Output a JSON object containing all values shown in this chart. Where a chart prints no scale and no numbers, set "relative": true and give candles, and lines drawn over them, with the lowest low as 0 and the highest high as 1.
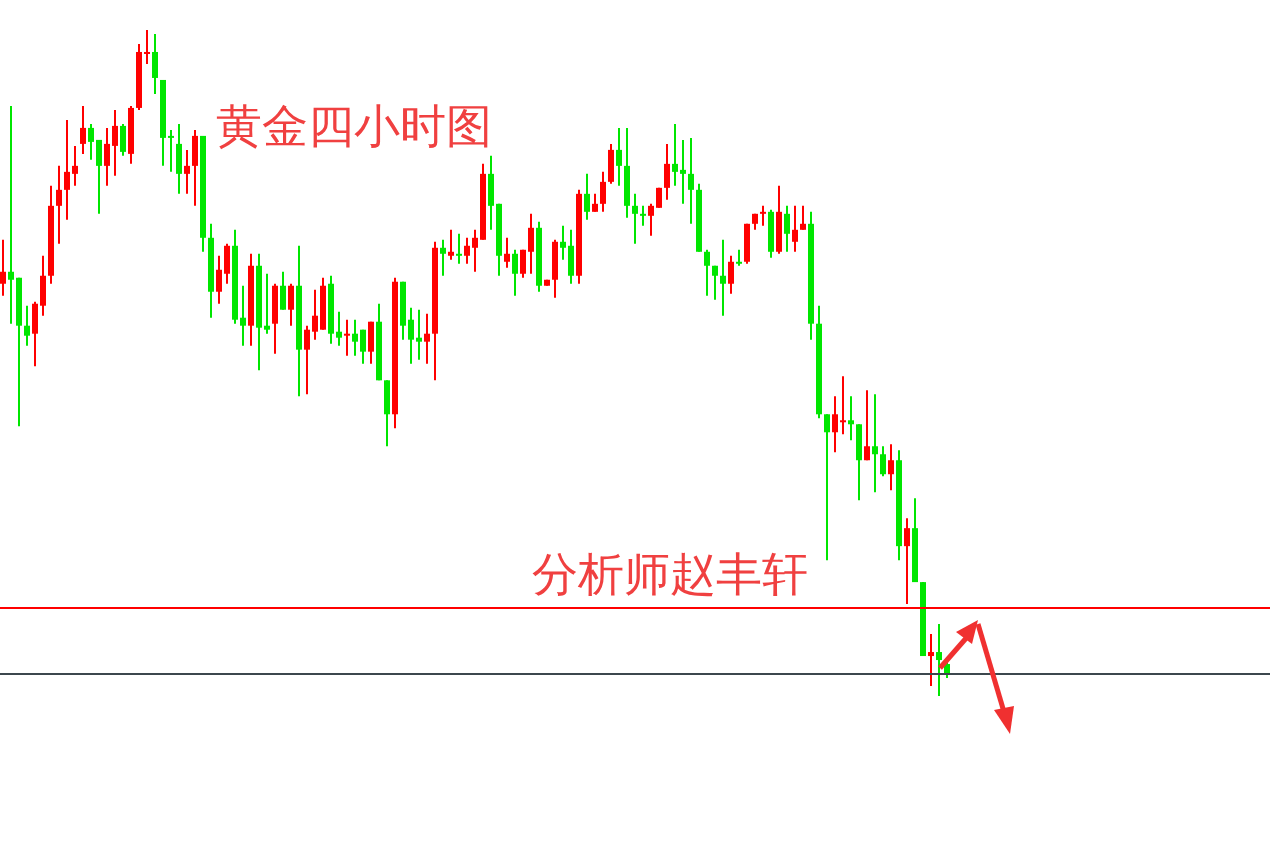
{
  "chart_data": {
    "type": "candlestick",
    "title": "黄金四小时图",
    "annotations": [
      "分析师赵丰轩"
    ],
    "relative": true,
    "categories": [
      null,
      null,
      null,
      null,
      null,
      null,
      null,
      null,
      null,
      null,
      null,
      null,
      null,
      null,
      null,
      null,
      null,
      null,
      null,
      null,
      null,
      null,
      null,
      null,
      null,
      null,
      null,
      null,
      null,
      null,
      null,
      null,
      null,
      null,
      null,
      null,
      null,
      null,
      null,
      null,
      null,
      null,
      null,
      null,
      null,
      null,
      null,
      null,
      null,
      null,
      null,
      null,
      null,
      null,
      null,
      null,
      null,
      null,
      null,
      null,
      null,
      null,
      null,
      null,
      null,
      null,
      null,
      null,
      null,
      null,
      null,
      null,
      null,
      null,
      null,
      null,
      null,
      null,
      null,
      null,
      null,
      null,
      null,
      null,
      null,
      null,
      null,
      null,
      null,
      null,
      null,
      null,
      null,
      null,
      null,
      null,
      null,
      null,
      null,
      null,
      null,
      null,
      null,
      null,
      null,
      null,
      null,
      null,
      null,
      null,
      null,
      null,
      null,
      null,
      null,
      null,
      null,
      null,
      null
    ],
    "ohlc": [
      [
        0.619,
        0.685,
        0.601,
        0.637
      ],
      [
        0.637,
        0.886,
        0.559,
        0.625
      ],
      [
        0.628,
        0.628,
        0.405,
        0.556
      ],
      [
        0.556,
        0.586,
        0.526,
        0.541
      ],
      [
        0.544,
        0.592,
        0.495,
        0.589
      ],
      [
        0.586,
        0.661,
        0.571,
        0.631
      ],
      [
        0.631,
        0.766,
        0.619,
        0.736
      ],
      [
        0.736,
        0.796,
        0.679,
        0.76
      ],
      [
        0.76,
        0.865,
        0.715,
        0.787
      ],
      [
        0.784,
        0.826,
        0.766,
        0.796
      ],
      [
        0.829,
        0.886,
        0.814,
        0.853
      ],
      [
        0.853,
        0.859,
        0.805,
        0.832
      ],
      [
        0.835,
        0.835,
        0.724,
        0.796
      ],
      [
        0.796,
        0.853,
        0.766,
        0.829
      ],
      [
        0.826,
        0.88,
        0.781,
        0.856
      ],
      [
        0.856,
        0.859,
        0.811,
        0.817
      ],
      [
        0.814,
        0.886,
        0.799,
        0.883
      ],
      [
        0.883,
        0.979,
        0.88,
        0.967
      ],
      [
        0.964,
        1,
        0.949,
        0.967
      ],
      [
        0.967,
        0.994,
        0.904,
        0.928
      ],
      [
        0.925,
        0.925,
        0.796,
        0.838
      ],
      [
        0.841,
        0.85,
        0.787,
        0.838
      ],
      [
        0.829,
        0.859,
        0.754,
        0.784
      ],
      [
        0.784,
        0.82,
        0.754,
        0.796
      ],
      [
        0.796,
        0.85,
        0.736,
        0.841
      ],
      [
        0.841,
        0.841,
        0.667,
        0.688
      ],
      [
        0.688,
        0.709,
        0.568,
        0.607
      ],
      [
        0.607,
        0.661,
        0.589,
        0.64
      ],
      [
        0.634,
        0.679,
        0.619,
        0.676
      ],
      [
        0.676,
        0.7,
        0.559,
        0.565
      ],
      [
        0.568,
        0.616,
        0.526,
        0.556
      ],
      [
        0.556,
        0.664,
        0.526,
        0.646
      ],
      [
        0.646,
        0.664,
        0.489,
        0.553
      ],
      [
        0.556,
        0.634,
        0.544,
        0.55
      ],
      [
        0.559,
        0.619,
        0.514,
        0.616
      ],
      [
        0.616,
        0.637,
        0.58,
        0.58
      ],
      [
        0.58,
        0.619,
        0.556,
        0.616
      ],
      [
        0.616,
        0.676,
        0.45,
        0.52
      ],
      [
        0.52,
        0.556,
        0.453,
        0.55
      ],
      [
        0.547,
        0.61,
        0.535,
        0.571
      ],
      [
        0.55,
        0.628,
        0.55,
        0.616
      ],
      [
        0.619,
        0.631,
        0.529,
        0.544
      ],
      [
        0.547,
        0.577,
        0.526,
        0.538
      ],
      [
        0.541,
        0.565,
        0.511,
        0.544
      ],
      [
        0.544,
        0.565,
        0.511,
        0.532
      ],
      [
        0.55,
        0.55,
        0.499,
        0.517
      ],
      [
        0.517,
        0.562,
        0.499,
        0.562
      ],
      [
        0.562,
        0.589,
        0.474,
        0.474
      ],
      [
        0.474,
        0.474,
        0.375,
        0.423
      ],
      [
        0.423,
        0.628,
        0.402,
        0.622
      ],
      [
        0.622,
        0.622,
        0.535,
        0.556
      ],
      [
        0.565,
        0.583,
        0.499,
        0.535
      ],
      [
        0.538,
        0.58,
        0.505,
        0.532
      ],
      [
        0.532,
        0.574,
        0.499,
        0.544
      ],
      [
        0.544,
        0.682,
        0.474,
        0.673
      ],
      [
        0.673,
        0.685,
        0.631,
        0.664
      ],
      [
        0.661,
        0.7,
        0.655,
        0.667
      ],
      [
        0.664,
        0.694,
        0.649,
        0.661
      ],
      [
        0.661,
        0.688,
        0.649,
        0.676
      ],
      [
        0.673,
        0.7,
        0.637,
        0.688
      ],
      [
        0.685,
        0.799,
        0.685,
        0.784
      ],
      [
        0.784,
        0.811,
        0.7,
        0.736
      ],
      [
        0.739,
        0.739,
        0.631,
        0.661
      ],
      [
        0.652,
        0.688,
        0.643,
        0.664
      ],
      [
        0.664,
        0.67,
        0.601,
        0.634
      ],
      [
        0.634,
        0.67,
        0.628,
        0.67
      ],
      [
        0.667,
        0.724,
        0.634,
        0.703
      ],
      [
        0.703,
        0.712,
        0.607,
        0.616
      ],
      [
        0.616,
        0.625,
        0.616,
        0.625
      ],
      [
        0.625,
        0.685,
        0.598,
        0.682
      ],
      [
        0.682,
        0.706,
        0.655,
        0.673
      ],
      [
        0.676,
        0.7,
        0.619,
        0.631
      ],
      [
        0.631,
        0.76,
        0.619,
        0.754
      ],
      [
        0.754,
        0.784,
        0.715,
        0.727
      ],
      [
        0.727,
        0.754,
        0.727,
        0.739
      ],
      [
        0.739,
        0.787,
        0.727,
        0.772
      ],
      [
        0.772,
        0.829,
        0.769,
        0.82
      ],
      [
        0.82,
        0.853,
        0.766,
        0.796
      ],
      [
        0.796,
        0.853,
        0.718,
        0.736
      ],
      [
        0.736,
        0.754,
        0.679,
        0.724
      ],
      [
        0.724,
        0.736,
        0.706,
        0.721
      ],
      [
        0.721,
        0.739,
        0.691,
        0.736
      ],
      [
        0.733,
        0.763,
        0.733,
        0.763
      ],
      [
        0.763,
        0.829,
        0.745,
        0.799
      ],
      [
        0.799,
        0.859,
        0.766,
        0.787
      ],
      [
        0.79,
        0.835,
        0.739,
        0.784
      ],
      [
        0.784,
        0.838,
        0.709,
        0.76
      ],
      [
        0.76,
        0.769,
        0.667,
        0.667
      ],
      [
        0.667,
        0.67,
        0.601,
        0.646
      ],
      [
        0.646,
        0.646,
        0.595,
        0.631
      ],
      [
        0.631,
        0.685,
        0.571,
        0.619
      ],
      [
        0.619,
        0.661,
        0.604,
        0.652
      ],
      [
        0.652,
        0.67,
        0.646,
        0.649
      ],
      [
        0.652,
        0.709,
        0.649,
        0.709
      ],
      [
        0.709,
        0.724,
        0.7,
        0.724
      ],
      [
        0.724,
        0.736,
        0.706,
        0.727
      ],
      [
        0.727,
        0.73,
        0.658,
        0.667
      ],
      [
        0.667,
        0.766,
        0.664,
        0.727
      ],
      [
        0.724,
        0.736,
        0.667,
        0.694
      ],
      [
        0.682,
        0.736,
        0.667,
        0.7
      ],
      [
        0.7,
        0.736,
        0.7,
        0.709
      ],
      [
        0.709,
        0.727,
        0.535,
        0.559
      ],
      [
        0.559,
        0.586,
        0.417,
        0.423
      ],
      [
        0.423,
        0.423,
        0.204,
        0.396
      ],
      [
        0.396,
        0.45,
        0.366,
        0.423
      ],
      [
        0.411,
        0.48,
        0.393,
        0.414
      ],
      [
        0.414,
        0.45,
        0.384,
        0.408
      ],
      [
        0.408,
        0.408,
        0.294,
        0.354
      ],
      [
        0.354,
        0.459,
        0.354,
        0.375
      ],
      [
        0.375,
        0.453,
        0.306,
        0.363
      ],
      [
        0.363,
        0.375,
        0.33,
        0.333
      ],
      [
        0.333,
        0.378,
        0.309,
        0.354
      ],
      [
        0.354,
        0.369,
        0.204,
        0.225
      ],
      [
        0.225,
        0.267,
        0.138,
        0.252
      ],
      [
        0.252,
        0.297,
        0.171,
        0.171
      ],
      [
        0.171,
        0.171,
        0.06,
        0.06
      ],
      [
        0.06,
        0.093,
        0.015,
        0.066
      ],
      [
        0.066,
        0.108,
        0,
        0.054
      ],
      [
        0.048,
        0.054,
        0.027,
        0.033
      ]
    ],
    "colors": [
      "#ff0000",
      "#00e600",
      "#00e600",
      "#00e600",
      "#ff0000",
      "#ff0000",
      "#ff0000",
      "#ff0000",
      "#ff0000",
      "#ff0000",
      "#ff0000",
      "#00e600",
      "#00e600",
      "#ff0000",
      "#ff0000",
      "#00e600",
      "#ff0000",
      "#ff0000",
      "#ff0000",
      "#00e600",
      "#00e600",
      "#00e600",
      "#00e600",
      "#ff0000",
      "#ff0000",
      "#00e600",
      "#00e600",
      "#ff0000",
      "#ff0000",
      "#00e600",
      "#00e600",
      "#ff0000",
      "#00e600",
      "#00e600",
      "#ff0000",
      "#00e600",
      "#ff0000",
      "#00e600",
      "#ff0000",
      "#ff0000",
      "#ff0000",
      "#00e600",
      "#00e600",
      "#ff0000",
      "#00e600",
      "#00e600",
      "#ff0000",
      "#00e600",
      "#00e600",
      "#ff0000",
      "#00e600",
      "#00e600",
      "#00e600",
      "#ff0000",
      "#ff0000",
      "#00e600",
      "#ff0000",
      "#00e600",
      "#ff0000",
      "#ff0000",
      "#ff0000",
      "#00e600",
      "#00e600",
      "#ff0000",
      "#00e600",
      "#ff0000",
      "#ff0000",
      "#00e600",
      "#ff0000",
      "#ff0000",
      "#00e600",
      "#00e600",
      "#ff0000",
      "#00e600",
      "#ff0000",
      "#ff0000",
      "#ff0000",
      "#00e600",
      "#00e600",
      "#00e600",
      "#00e600",
      "#ff0000",
      "#ff0000",
      "#ff0000",
      "#00e600",
      "#00e600",
      "#00e600",
      "#00e600",
      "#00e600",
      "#00e600",
      "#00e600",
      "#ff0000",
      "#00e600",
      "#ff0000",
      "#ff0000",
      "#ff0000",
      "#00e600",
      "#ff0000",
      "#00e600",
      "#ff0000",
      "#ff0000",
      "#00e600",
      "#00e600",
      "#00e600",
      "#ff0000",
      "#ff0000",
      "#00e600",
      "#00e600",
      "#ff0000",
      "#00e600",
      "#00e600",
      "#ff0000",
      "#00e600",
      "#ff0000",
      "#00e600",
      "#00e600",
      "#ff0000",
      "#00e600",
      "#00e600"
    ],
    "ref_lines": [
      {
        "axis": "y",
        "value": 0.132,
        "color": "#ff0000"
      },
      {
        "axis": "y",
        "value": 0.033,
        "color": "#3c474d"
      }
    ]
  }
}
